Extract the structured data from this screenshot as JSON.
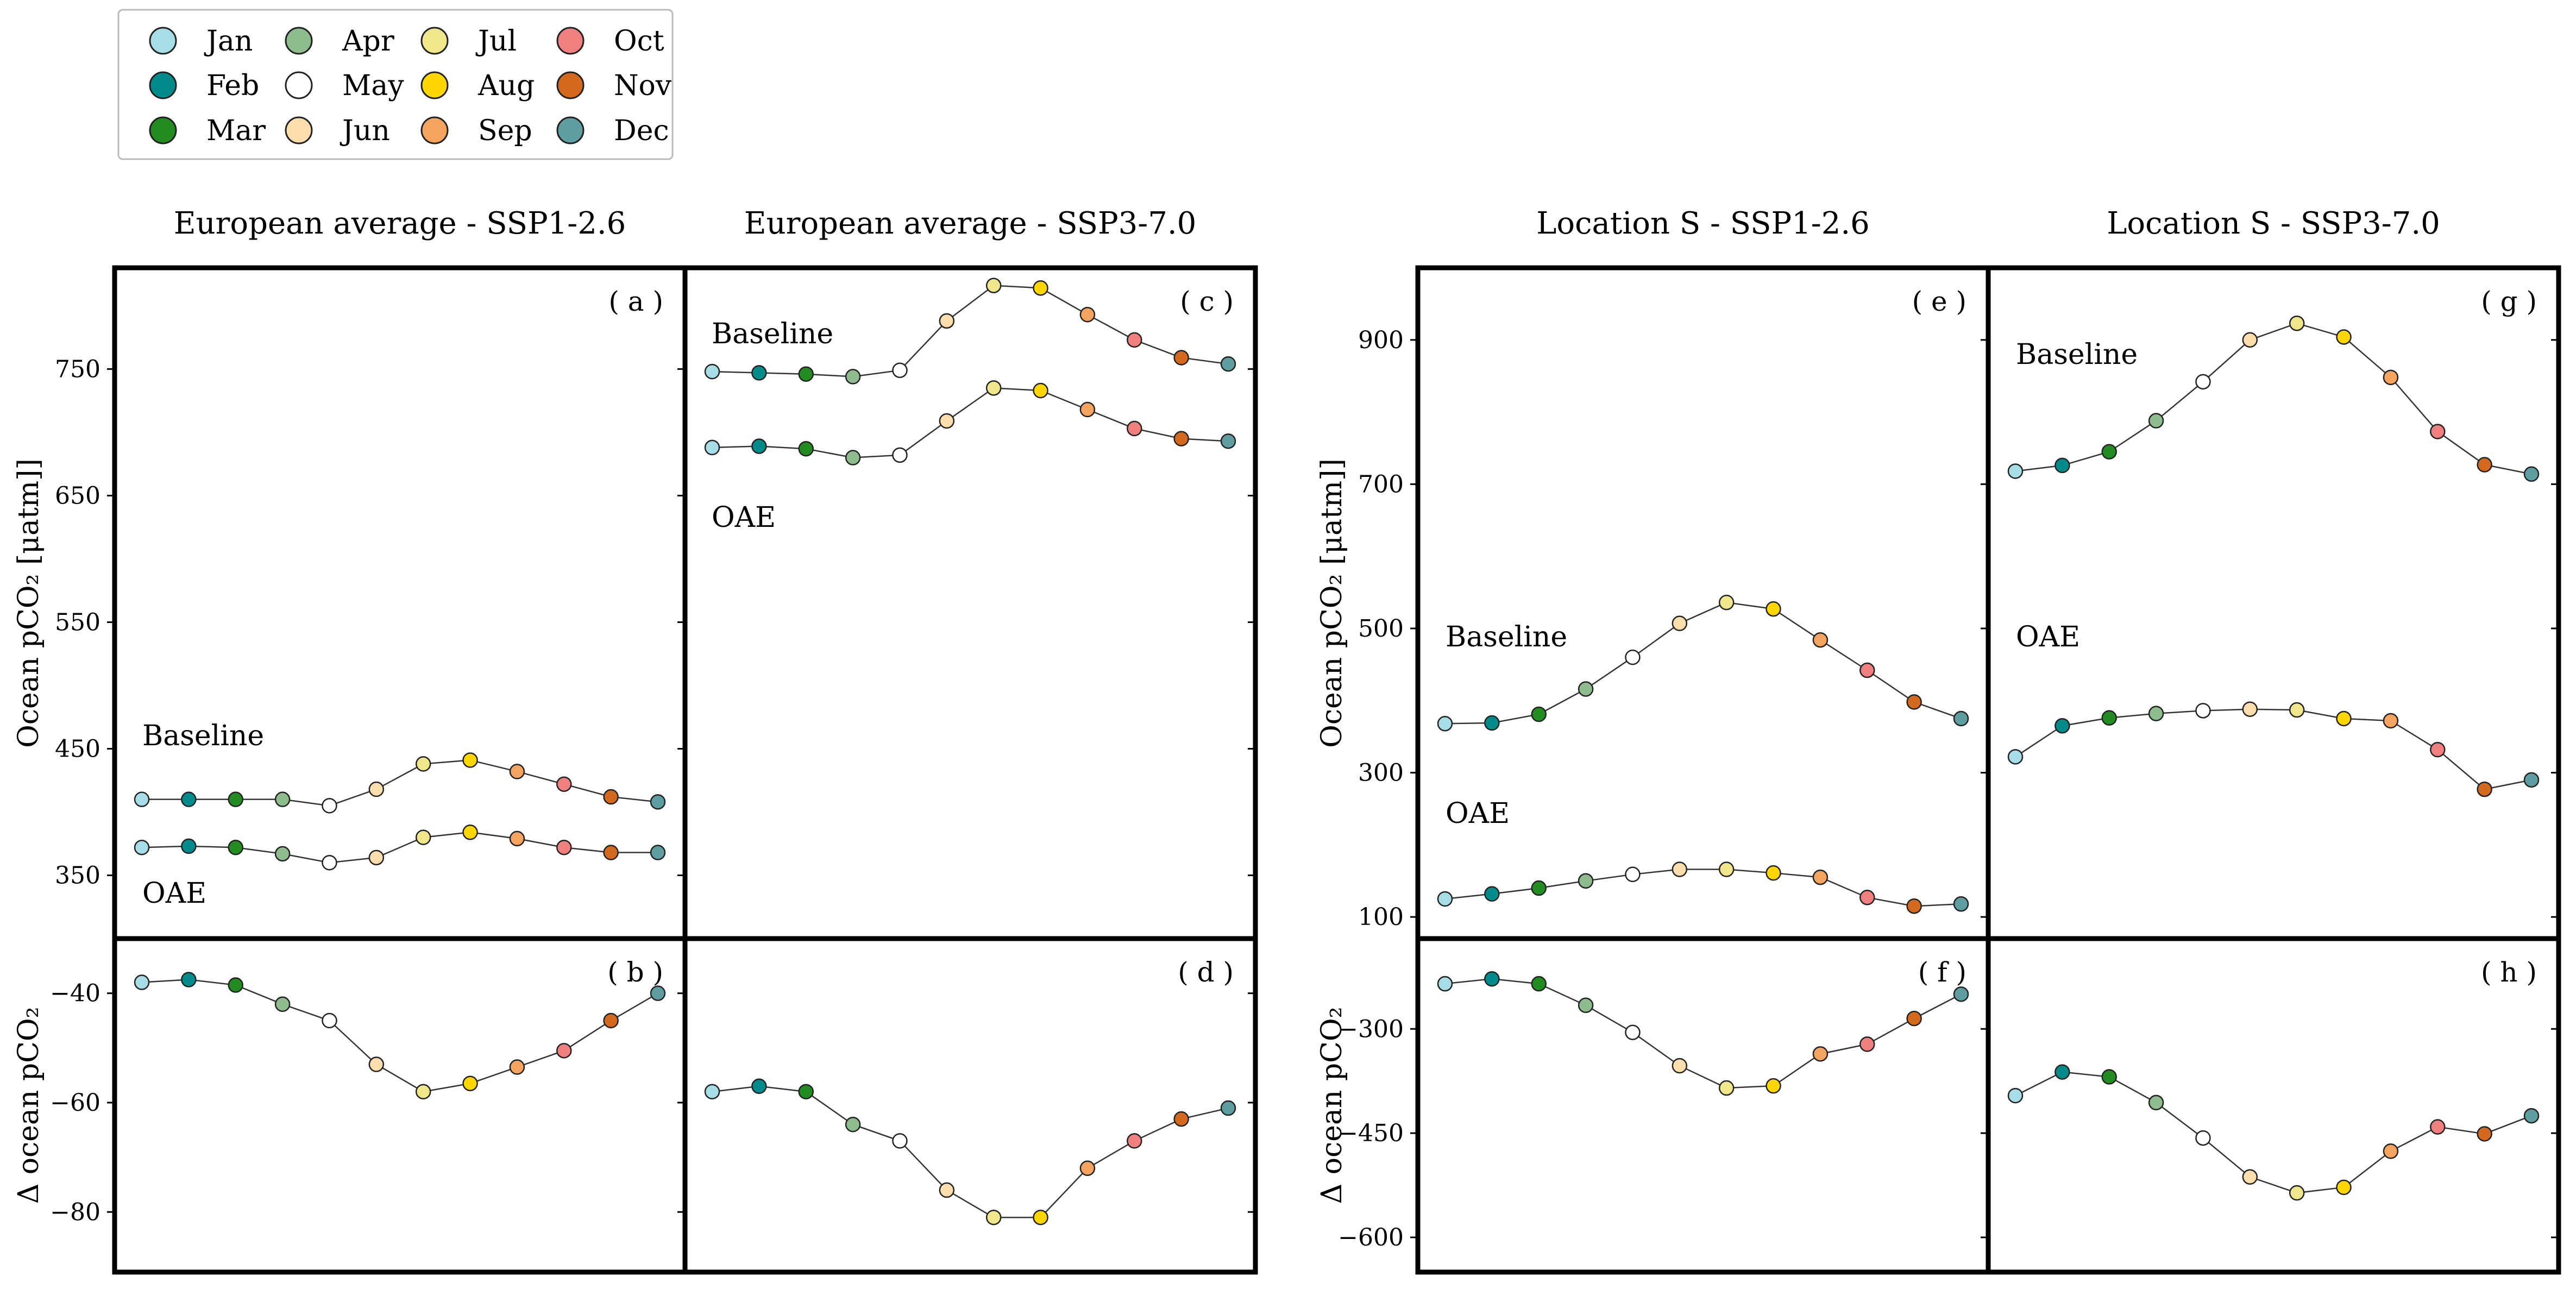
{
  "months": [
    {
      "label": "Jan",
      "color": "#a6dde6"
    },
    {
      "label": "Feb",
      "color": "#008b8b"
    },
    {
      "label": "Mar",
      "color": "#228b22"
    },
    {
      "label": "Apr",
      "color": "#8fbc8f"
    },
    {
      "label": "May",
      "color": "#ffffff"
    },
    {
      "label": "Jun",
      "color": "#ffdead"
    },
    {
      "label": "Jul",
      "color": "#f0e68c"
    },
    {
      "label": "Aug",
      "color": "#ffd700"
    },
    {
      "label": "Sep",
      "color": "#f4a460"
    },
    {
      "label": "Oct",
      "color": "#f08080"
    },
    {
      "label": "Nov",
      "color": "#d2691e"
    },
    {
      "label": "Dec",
      "color": "#5f9ea0"
    }
  ],
  "chart_data": [
    {
      "type": "line",
      "title": "European average - SSP1-2.6",
      "panel_letter": "( a )",
      "ylabel": "Ocean pCO₂ [μatm]]",
      "ylim": [
        300,
        830
      ],
      "yticks": [
        350,
        450,
        550,
        650,
        750
      ],
      "annotations": [
        "Baseline",
        "OAE"
      ],
      "series": [
        {
          "name": "Baseline",
          "values": [
            410,
            410,
            410,
            410,
            405,
            418,
            438,
            441,
            432,
            422,
            412,
            408
          ]
        },
        {
          "name": "OAE",
          "values": [
            372,
            373,
            372,
            367,
            360,
            364,
            380,
            384,
            379,
            372,
            368,
            368
          ]
        }
      ]
    },
    {
      "type": "line",
      "title": "European average - SSP3-7.0",
      "panel_letter": "( c )",
      "ylabel": "",
      "ylim": [
        300,
        830
      ],
      "yticks": [
        350,
        450,
        550,
        650,
        750
      ],
      "annotations": [
        "Baseline",
        "OAE"
      ],
      "series": [
        {
          "name": "Baseline",
          "values": [
            748,
            747,
            746,
            744,
            749,
            788,
            816,
            814,
            793,
            773,
            759,
            754
          ]
        },
        {
          "name": "OAE",
          "values": [
            688,
            689,
            687,
            680,
            682,
            709,
            735,
            733,
            718,
            703,
            695,
            693
          ]
        }
      ]
    },
    {
      "type": "line",
      "title": "",
      "panel_letter": "( b )",
      "ylabel": "Δ ocean pCO₂",
      "ylim": [
        -91,
        -30
      ],
      "yticks": [
        -80,
        -60,
        -40
      ],
      "series": [
        {
          "name": "",
          "values": [
            -38,
            -37.5,
            -38.5,
            -42,
            -45,
            -53,
            -58,
            -56.5,
            -53.5,
            -50.5,
            -45,
            -40
          ]
        }
      ]
    },
    {
      "type": "line",
      "title": "",
      "panel_letter": "( d )",
      "ylabel": "",
      "ylim": [
        -91,
        -30
      ],
      "yticks": [
        -80,
        -60,
        -40
      ],
      "series": [
        {
          "name": "",
          "values": [
            -58,
            -57,
            -58,
            -64,
            -67,
            -76,
            -81,
            -81,
            -72,
            -67,
            -63,
            -61
          ]
        }
      ]
    },
    {
      "type": "line",
      "title": "Location S - SSP1-2.6",
      "panel_letter": "( e )",
      "ylabel": "Ocean pCO₂ [μatm]]",
      "ylim": [
        70,
        1000
      ],
      "yticks": [
        100,
        300,
        500,
        700,
        900
      ],
      "annotations": [
        "Baseline",
        "OAE"
      ],
      "series": [
        {
          "name": "Baseline",
          "values": [
            368,
            369,
            381,
            416,
            460,
            507,
            536,
            527,
            484,
            442,
            398,
            375
          ]
        },
        {
          "name": "OAE",
          "values": [
            125,
            132,
            140,
            150,
            159,
            166,
            166,
            161,
            155,
            127,
            115,
            118
          ]
        }
      ]
    },
    {
      "type": "line",
      "title": "Location S - SSP3-7.0",
      "panel_letter": "( g )",
      "ylabel": "",
      "ylim": [
        70,
        1000
      ],
      "yticks": [
        100,
        300,
        500,
        700,
        900
      ],
      "annotations": [
        "Baseline",
        "OAE"
      ],
      "series": [
        {
          "name": "Baseline",
          "values": [
            718,
            726,
            745,
            788,
            842,
            900,
            923,
            904,
            848,
            773,
            727,
            714
          ]
        },
        {
          "name": "OAE",
          "values": [
            322,
            365,
            376,
            382,
            386,
            388,
            387,
            375,
            372,
            332,
            277,
            290
          ]
        }
      ]
    },
    {
      "type": "line",
      "title": "",
      "panel_letter": "( f )",
      "ylabel": "Δ ocean pCO₂",
      "ylim": [
        -650,
        -170
      ],
      "yticks": [
        -600,
        -450,
        -300
      ],
      "series": [
        {
          "name": "",
          "values": [
            -235,
            -228,
            -235,
            -266,
            -305,
            -353,
            -385,
            -382,
            -336,
            -322,
            -285,
            -250
          ]
        }
      ]
    },
    {
      "type": "line",
      "title": "",
      "panel_letter": "( h )",
      "ylabel": "",
      "ylim": [
        -650,
        -170
      ],
      "yticks": [
        -600,
        -450,
        -300
      ],
      "series": [
        {
          "name": "",
          "values": [
            -396,
            -362,
            -369,
            -406,
            -457,
            -513,
            -536,
            -528,
            -476,
            -441,
            -451,
            -425
          ]
        }
      ]
    }
  ]
}
